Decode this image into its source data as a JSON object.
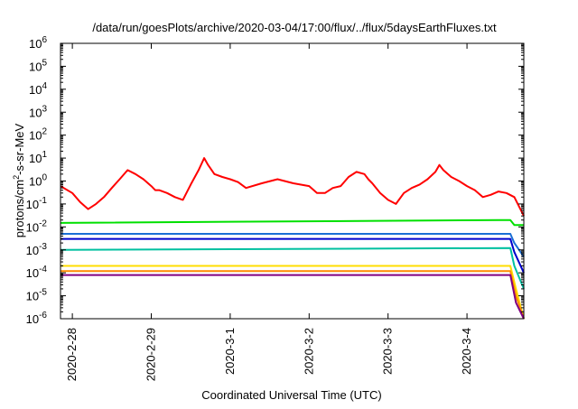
{
  "chart_data": {
    "type": "line",
    "title": "/data/run/goesPlots/archive/2020-03-04/17:00/flux/../flux/5daysEarthFluxes.txt",
    "xlabel": "Coordinated Universal Time (UTC)",
    "ylabel": {
      "base": "protons/cm",
      "sup": "2",
      "rest": "-s-sr-MeV"
    },
    "yscale": "log",
    "ylim": [
      1e-06,
      1000000.0
    ],
    "xlim": [
      "2020-2-28 00:00",
      "2020-3-4 17:00"
    ],
    "grid": false,
    "legend": "none",
    "yticks": [
      {
        "value": 1e-06,
        "base": "10",
        "exp": "-6"
      },
      {
        "value": 1e-05,
        "base": "10",
        "exp": "-5"
      },
      {
        "value": 0.0001,
        "base": "10",
        "exp": "-4"
      },
      {
        "value": 0.001,
        "base": "10",
        "exp": "-3"
      },
      {
        "value": 0.01,
        "base": "10",
        "exp": "-2"
      },
      {
        "value": 0.1,
        "base": "10",
        "exp": "-1"
      },
      {
        "value": 1,
        "base": "10",
        "exp": "0"
      },
      {
        "value": 10,
        "base": "10",
        "exp": "1"
      },
      {
        "value": 100,
        "base": "10",
        "exp": "2"
      },
      {
        "value": 1000,
        "base": "10",
        "exp": "3"
      },
      {
        "value": 10000,
        "base": "10",
        "exp": "4"
      },
      {
        "value": 100000,
        "base": "10",
        "exp": "5"
      },
      {
        "value": 1000000,
        "base": "10",
        "exp": "6"
      }
    ],
    "xticks": [
      "2020-2-28",
      "2020-2-29",
      "2020-3-1",
      "2020-3-2",
      "2020-3-3",
      "2020-3-4"
    ],
    "xtick_days": [
      0,
      1,
      2,
      3,
      4,
      5
    ],
    "x_day_range": [
      -0.15,
      5.72
    ],
    "series": [
      {
        "color": "#ff0000",
        "x_days": [
          -0.15,
          0.0,
          0.1,
          0.2,
          0.3,
          0.4,
          0.5,
          0.6,
          0.7,
          0.8,
          0.9,
          1.0,
          1.05,
          1.1,
          1.2,
          1.3,
          1.4,
          1.5,
          1.6,
          1.67,
          1.72,
          1.8,
          1.9,
          2.0,
          2.1,
          2.2,
          2.4,
          2.6,
          2.8,
          3.0,
          3.1,
          3.2,
          3.3,
          3.4,
          3.5,
          3.6,
          3.7,
          3.75,
          3.8,
          3.9,
          4.0,
          4.1,
          4.2,
          4.3,
          4.4,
          4.5,
          4.6,
          4.65,
          4.7,
          4.8,
          4.9,
          5.0,
          5.1,
          5.2,
          5.3,
          5.4,
          5.5,
          5.6,
          5.72
        ],
        "values": [
          0.6,
          0.3,
          0.12,
          0.06,
          0.1,
          0.2,
          0.5,
          1.2,
          3,
          2,
          1.2,
          0.6,
          0.4,
          0.4,
          0.3,
          0.2,
          0.15,
          0.7,
          3,
          10,
          5,
          2,
          1.5,
          1.2,
          0.9,
          0.5,
          0.8,
          1.2,
          0.8,
          0.6,
          0.3,
          0.3,
          0.5,
          0.6,
          1.5,
          2.5,
          2,
          1.2,
          0.8,
          0.3,
          0.15,
          0.1,
          0.3,
          0.5,
          0.7,
          1.2,
          2.5,
          5,
          3,
          1.5,
          1,
          0.6,
          0.4,
          0.2,
          0.25,
          0.35,
          0.3,
          0.2,
          0.03
        ]
      },
      {
        "color": "#00e000",
        "x_days": [
          -0.15,
          5.4,
          5.55,
          5.6,
          5.72
        ],
        "values": [
          0.015,
          0.02,
          0.02,
          0.012,
          0.012
        ]
      },
      {
        "color": "#1a6fd6",
        "x_days": [
          -0.15,
          5.55,
          5.6,
          5.72
        ],
        "values": [
          0.005,
          0.005,
          0.002,
          0.0005
        ]
      },
      {
        "color": "#0000cc",
        "x_days": [
          -0.15,
          5.55,
          5.6,
          5.72
        ],
        "values": [
          0.003,
          0.003,
          0.0008,
          0.0001
        ]
      },
      {
        "color": "#00c0a0",
        "x_days": [
          -0.15,
          5.55,
          5.6,
          5.72
        ],
        "values": [
          0.001,
          0.0012,
          0.0002,
          2e-05
        ]
      },
      {
        "color": "#ffdd00",
        "x_days": [
          -0.15,
          5.55,
          5.62,
          5.72
        ],
        "values": [
          0.0002,
          0.0002,
          2e-05,
          1e-06
        ]
      },
      {
        "color": "#ff8c00",
        "x_days": [
          -0.15,
          5.55,
          5.62,
          5.72
        ],
        "values": [
          0.00012,
          0.00012,
          1e-05,
          1e-06
        ]
      },
      {
        "color": "#800080",
        "x_days": [
          -0.15,
          5.55,
          5.62,
          5.72
        ],
        "values": [
          8e-05,
          8e-05,
          5e-06,
          1e-06
        ]
      }
    ]
  }
}
